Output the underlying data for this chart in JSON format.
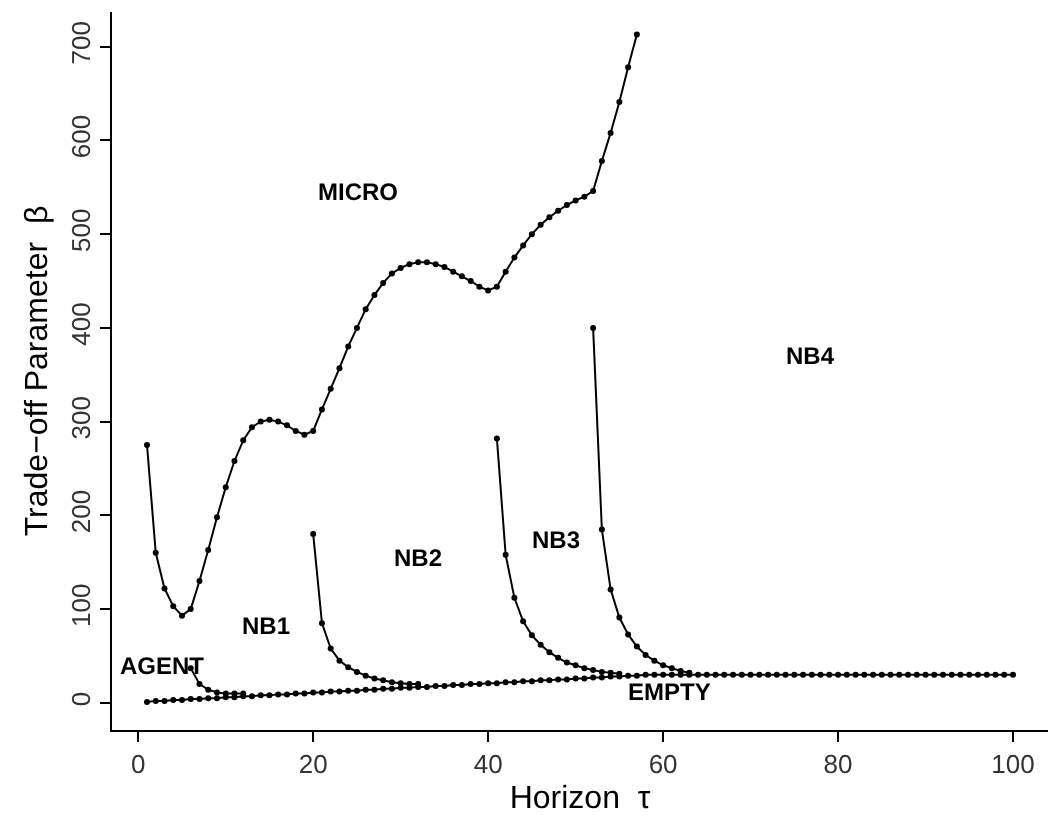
{
  "chart_data": {
    "type": "line",
    "xlabel": "Horizon  τ",
    "ylabel": "Trade−off Parameter  β",
    "xlim": [
      -3,
      104
    ],
    "ylim": [
      -29,
      737
    ],
    "xticks": [
      0,
      20,
      40,
      60,
      80,
      100
    ],
    "yticks": [
      0,
      100,
      200,
      300,
      400,
      500,
      600,
      700
    ],
    "grid": false,
    "marker": "circle",
    "line_style": "solid",
    "series": [
      {
        "color": "#000000",
        "x": [
          1,
          2,
          3,
          4,
          5,
          6,
          7,
          8,
          9,
          10,
          11,
          12,
          13,
          14,
          15,
          16,
          17,
          18,
          19,
          20,
          21,
          22,
          23,
          24,
          25,
          26,
          27,
          28,
          29,
          30,
          31,
          32,
          33,
          34,
          35,
          36,
          37,
          38,
          39,
          40,
          41,
          42,
          43,
          44,
          45,
          46,
          47,
          48,
          49,
          50,
          51,
          52,
          53,
          54,
          55,
          56,
          57
        ],
        "values": [
          275,
          160,
          122,
          103,
          93,
          100,
          130,
          163,
          198,
          230,
          258,
          280,
          294,
          300,
          302,
          300,
          296,
          290,
          286,
          290,
          313,
          335,
          357,
          380,
          400,
          420,
          435,
          448,
          458,
          464,
          468,
          470,
          470,
          468,
          465,
          460,
          455,
          450,
          444,
          440,
          444,
          460,
          475,
          488,
          500,
          510,
          518,
          525,
          531,
          536,
          540,
          546,
          578,
          608,
          641,
          678,
          713
        ]
      },
      {
        "color": "#000000",
        "x": [
          1,
          2,
          3,
          4,
          5,
          6,
          7,
          8,
          9,
          10,
          11,
          12,
          13,
          14,
          15,
          16,
          17,
          18,
          19,
          20,
          21,
          22,
          23,
          24,
          25,
          26,
          27,
          28,
          29,
          30,
          31,
          32,
          33,
          34,
          35,
          36,
          37,
          38,
          39,
          40,
          41,
          42,
          43,
          44,
          45,
          46,
          47,
          48,
          49,
          50,
          51,
          52,
          53,
          54,
          55,
          56,
          57,
          58,
          59,
          60,
          61,
          62,
          63,
          64,
          65,
          66,
          67,
          68,
          69,
          70,
          71,
          72,
          73,
          74,
          75,
          76,
          77,
          78,
          79,
          80,
          81,
          82,
          83,
          84,
          85,
          86,
          87,
          88,
          89,
          90,
          91,
          92,
          93,
          94,
          95,
          96,
          97,
          98,
          99,
          100
        ],
        "values": [
          1,
          2,
          2,
          3,
          3,
          4,
          4,
          5,
          5,
          6,
          6,
          7,
          7,
          8,
          8,
          9,
          9,
          10,
          10,
          11,
          11,
          12,
          12,
          13,
          13,
          14,
          14,
          15,
          15,
          16,
          16,
          17,
          17,
          18,
          18,
          19,
          19,
          20,
          20,
          21,
          21,
          22,
          22,
          23,
          23,
          24,
          24,
          25,
          25,
          26,
          26,
          27,
          27,
          28,
          28,
          29,
          29,
          30,
          30,
          30,
          30,
          30,
          30,
          30,
          30,
          30,
          30,
          30,
          30,
          30,
          30,
          30,
          30,
          30,
          30,
          30,
          30,
          30,
          30,
          30,
          30,
          30,
          30,
          30,
          30,
          30,
          30,
          30,
          30,
          30,
          30,
          30,
          30,
          30,
          30,
          30,
          30,
          30,
          30,
          30
        ]
      },
      {
        "color": "#000000",
        "x": [
          6,
          7,
          8,
          9,
          10,
          11,
          12
        ],
        "values": [
          37,
          20,
          14,
          11,
          10,
          10,
          10
        ]
      },
      {
        "color": "#000000",
        "x": [
          20,
          21,
          22,
          23,
          24,
          25,
          26,
          27,
          28,
          29,
          30,
          31,
          32
        ],
        "values": [
          180,
          85,
          58,
          45,
          38,
          33,
          29,
          26,
          24,
          22,
          21,
          20,
          20
        ]
      },
      {
        "color": "#000000",
        "x": [
          41,
          42,
          43,
          44,
          45,
          46,
          47,
          48,
          49,
          50,
          51,
          52,
          53,
          54,
          55
        ],
        "values": [
          282,
          158,
          112,
          87,
          72,
          62,
          54,
          48,
          43,
          40,
          37,
          35,
          33,
          32,
          31
        ]
      },
      {
        "color": "#000000",
        "x": [
          52,
          53,
          54,
          55,
          56,
          57,
          58,
          59,
          60,
          61,
          62,
          63
        ],
        "values": [
          400,
          185,
          121,
          91,
          73,
          60,
          51,
          45,
          40,
          37,
          34,
          32
        ]
      }
    ],
    "annotations": [
      "MICRO",
      "NB4",
      "NB2",
      "NB3",
      "NB1",
      "AGENT",
      "EMPTY"
    ]
  }
}
